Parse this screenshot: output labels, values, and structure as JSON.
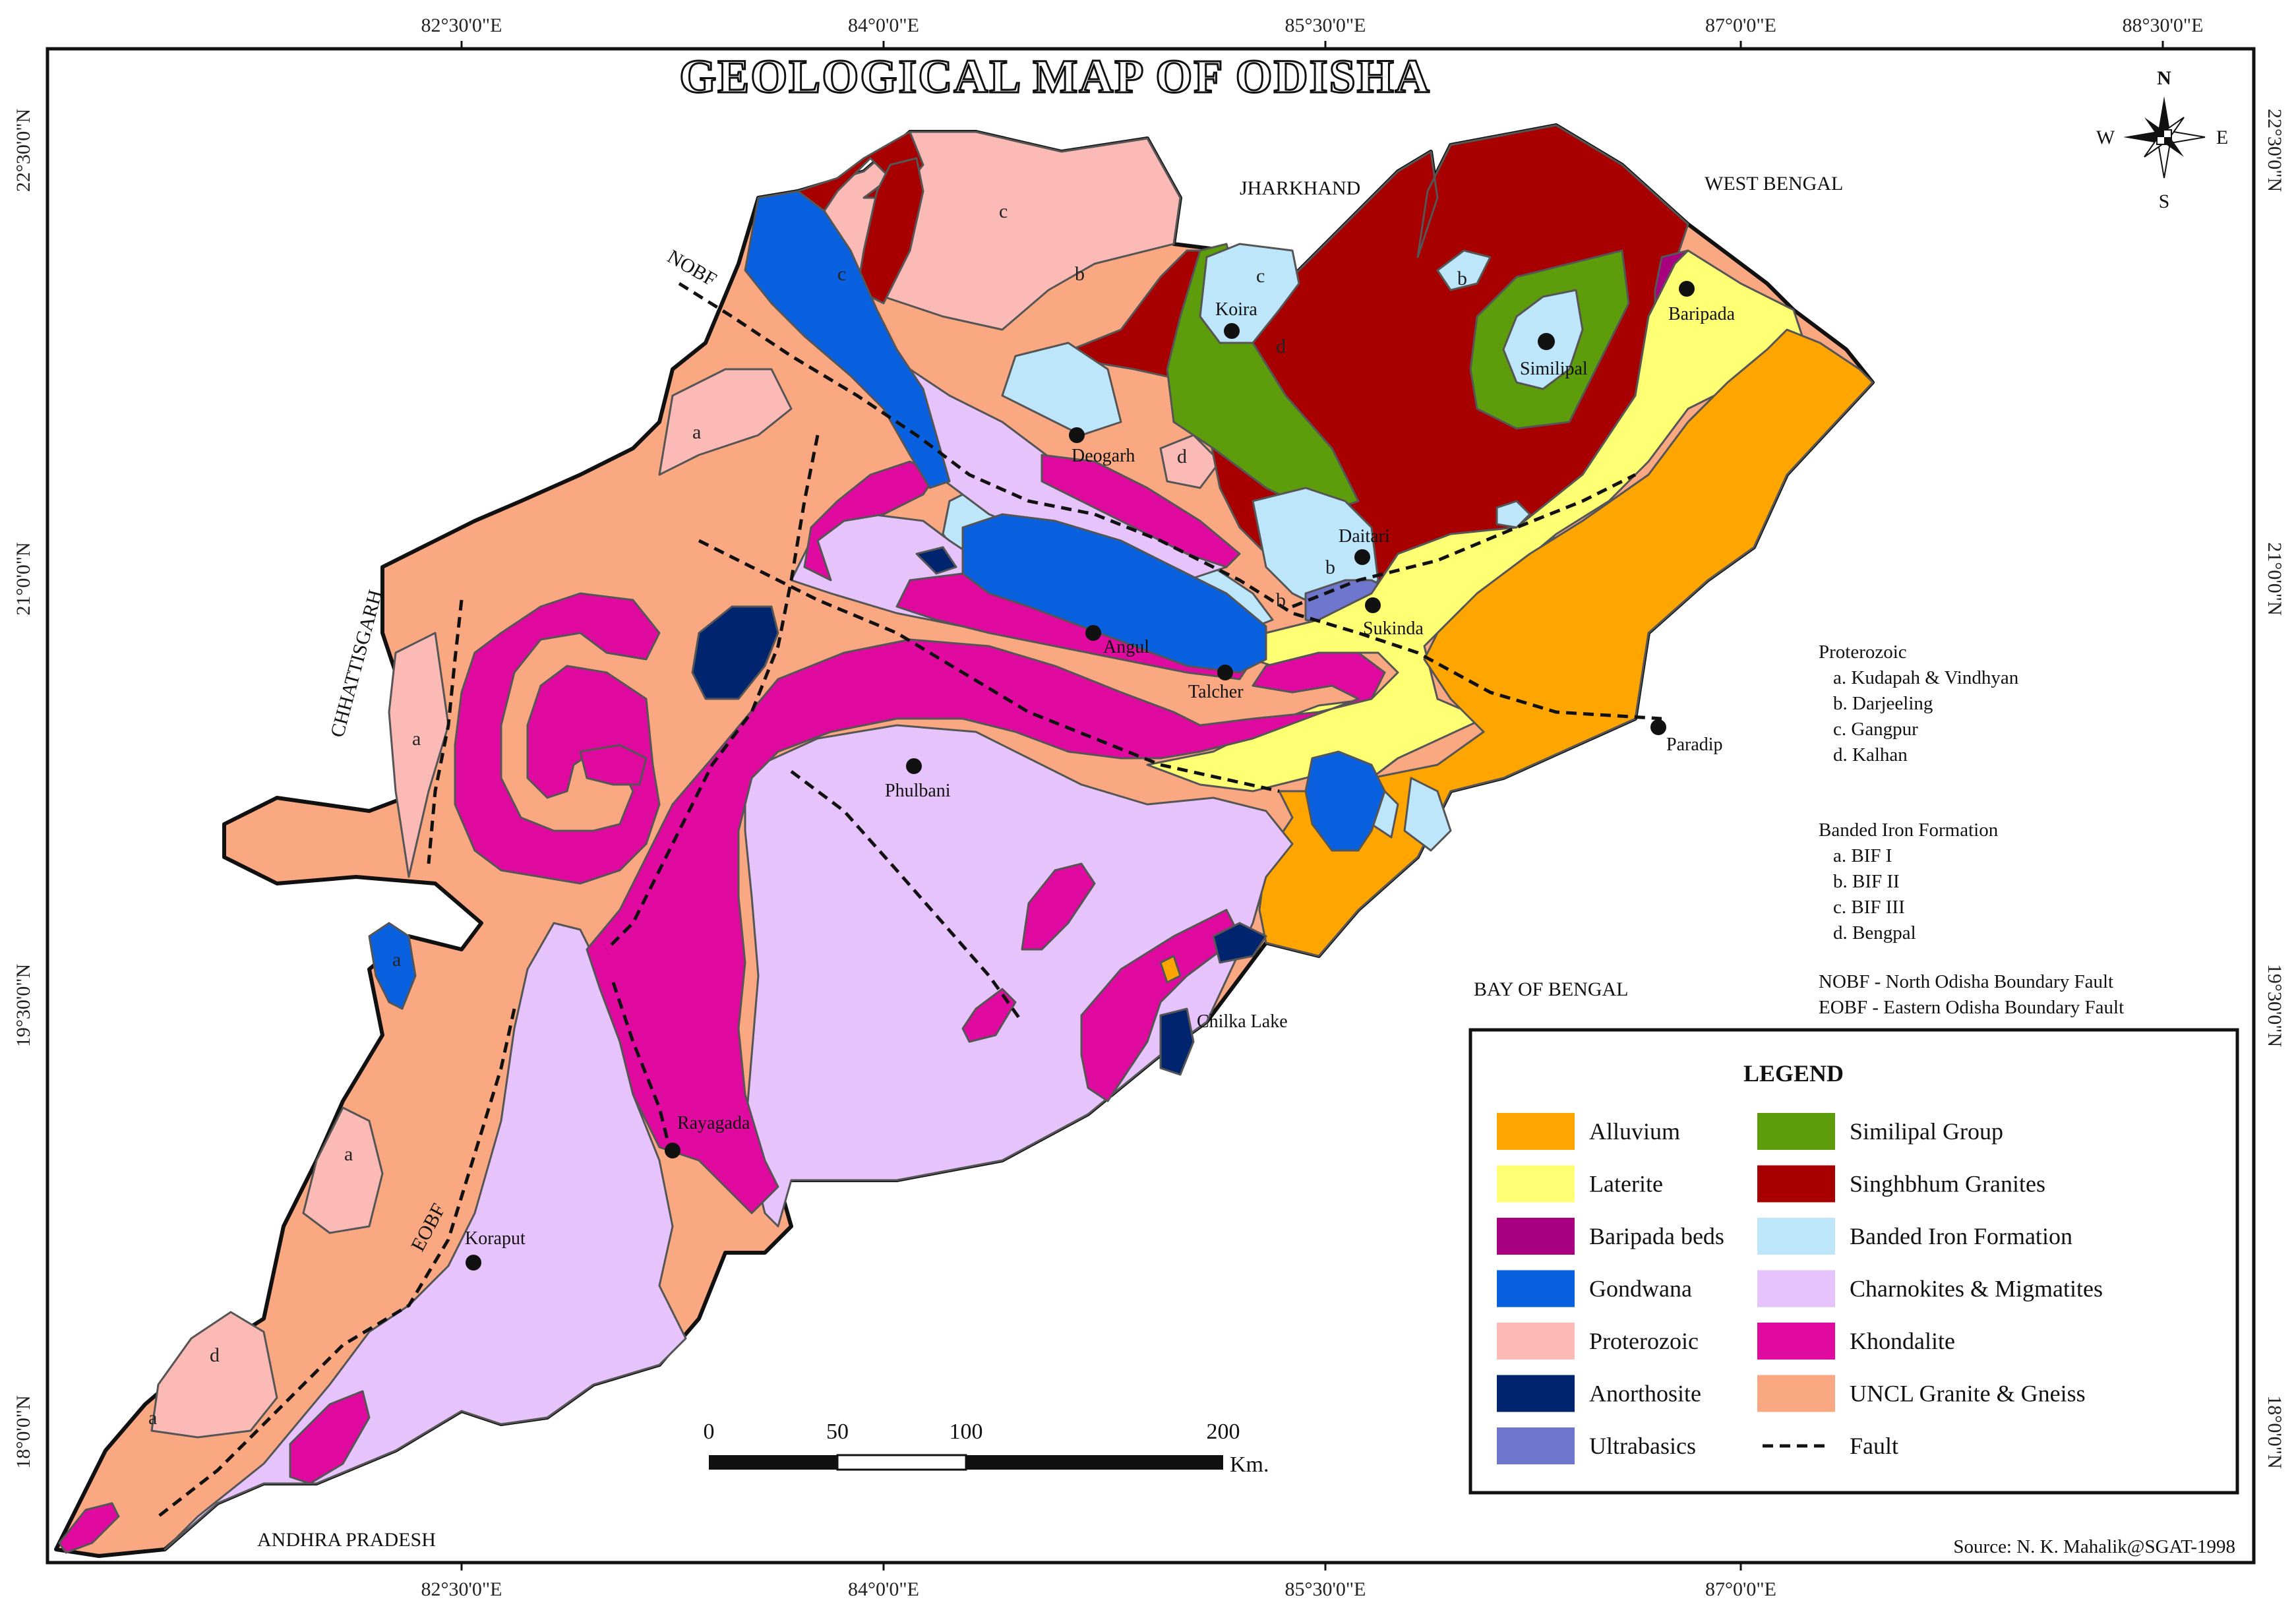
{
  "title": "GEOLOGICAL MAP OF ODISHA",
  "graticule": {
    "top": [
      "82°30'0\"E",
      "84°0'0\"E",
      "85°30'0\"E",
      "87°0'0\"E",
      "88°30'0\"E"
    ],
    "bottom": [
      "82°30'0\"E",
      "84°0'0\"E",
      "85°30'0\"E",
      "87°0'0\"E"
    ],
    "left": [
      "22°30'0\"N",
      "21°0'0\"N",
      "19°30'0\"N",
      "18°0'0\"N"
    ],
    "right": [
      "22°30'0\"N",
      "21°0'0\"N",
      "19°30'0\"N",
      "18°0'0\"N"
    ]
  },
  "compass": {
    "n": "N",
    "s": "S",
    "e": "E",
    "w": "W"
  },
  "regions": {
    "jharkhand": "JHARKHAND",
    "west_bengal": "WEST BENGAL",
    "chhattisgarh": "CHHATTISGARH",
    "andhra_pradesh": "ANDHRA PRADESH",
    "bay_of_bengal": "BAY OF BENGAL"
  },
  "places": {
    "koira": "Koira",
    "similipal": "Similipal",
    "baripada": "Baripada",
    "deogarh": "Deogarh",
    "daitari": "Daitari",
    "sukinda": "Sukinda",
    "angul": "Angul",
    "talcher": "Talcher",
    "paradip": "Paradip",
    "phulbani": "Phulbani",
    "chilka": "Chilka Lake",
    "rayagada": "Rayagada",
    "koraput": "Koraput"
  },
  "faults": {
    "nobf": "NOBF",
    "eobf": "EOBF"
  },
  "letters": {
    "a": "a",
    "b": "b",
    "c": "c",
    "d": "d"
  },
  "notes": {
    "proterozoic": {
      "heading": "Proterozoic",
      "items": [
        "a. Kudapah & Vindhyan",
        "b. Darjeeling",
        "c. Gangpur",
        "d. Kalhan"
      ]
    },
    "bif": {
      "heading": "Banded Iron Formation",
      "items": [
        "a. BIF I",
        "b. BIF II",
        "c. BIF III",
        "d. Bengpal"
      ]
    },
    "abbrev": [
      "NOBF - North Odisha Boundary Fault",
      "EOBF - Eastern Odisha Boundary Fault"
    ]
  },
  "legend": {
    "title": "LEGEND",
    "left": [
      {
        "label": "Alluvium",
        "color": "#FFA500"
      },
      {
        "label": "Laterite",
        "color": "#FFFF73"
      },
      {
        "label": "Baripada beds",
        "color": "#A8007F"
      },
      {
        "label": "Gondwana",
        "color": "#0A61E0"
      },
      {
        "label": "Proterozoic",
        "color": "#FBBAB6"
      },
      {
        "label": "Anorthosite",
        "color": "#00246E"
      },
      {
        "label": "Ultrabasics",
        "color": "#6E76CD"
      }
    ],
    "right": [
      {
        "label": "Similipal Group",
        "color": "#5D9C0A"
      },
      {
        "label": "Singhbhum Granites",
        "color": "#A80000"
      },
      {
        "label": "Banded Iron Formation",
        "color": "#BEE6FA"
      },
      {
        "label": "Charnokites & Migmatites",
        "color": "#E6C3FA"
      },
      {
        "label": "Khondalite",
        "color": "#E10AA0"
      },
      {
        "label": "UNCL Granite & Gneiss",
        "color": "#FAA882"
      },
      {
        "label": "Fault",
        "color": "#111111"
      }
    ]
  },
  "scale": {
    "ticks": [
      "0",
      "50",
      "100",
      "200"
    ],
    "unit": "Km."
  },
  "source": "Source: N. K. Mahalik@SGAT-1998"
}
